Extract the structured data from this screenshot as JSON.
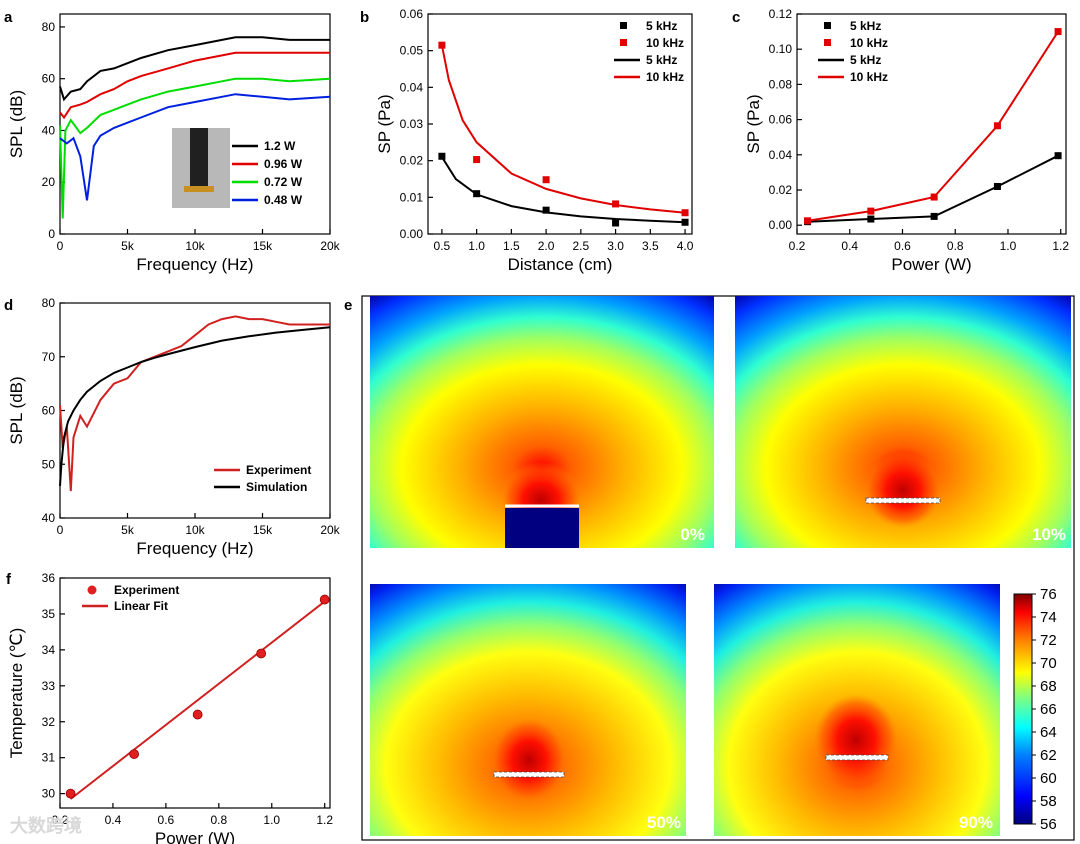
{
  "watermark": "大数跨境",
  "chart_data": [
    {
      "panel": "a",
      "type": "line",
      "xlabel": "Frequency (Hz)",
      "ylabel": "SPL (dB)",
      "xlim": [
        0,
        20000
      ],
      "ylim": [
        0,
        85
      ],
      "xticks": [
        0,
        5000,
        10000,
        15000,
        20000
      ],
      "xticklabels": [
        "0",
        "5k",
        "10k",
        "15k",
        "20k"
      ],
      "yticks": [
        0,
        20,
        40,
        60,
        80
      ],
      "yticklabels": [
        "0",
        "20",
        "40",
        "60",
        "80"
      ],
      "inset": "photo of device",
      "series": [
        {
          "name": "1.2 W",
          "color": "#000000",
          "x": [
            0,
            300,
            800,
            1500,
            2000,
            3000,
            4000,
            5000,
            6000,
            8000,
            10000,
            12000,
            13000,
            15000,
            17000,
            20000
          ],
          "y": [
            57,
            52,
            55,
            56,
            59,
            63,
            64,
            66,
            68,
            71,
            73,
            75,
            76,
            76,
            75,
            75
          ]
        },
        {
          "name": "0.96 W",
          "color": "#e00000",
          "x": [
            0,
            300,
            800,
            1500,
            2000,
            3000,
            4000,
            5000,
            6000,
            8000,
            10000,
            12000,
            13000,
            15000,
            17000,
            20000
          ],
          "y": [
            47,
            45,
            49,
            50,
            51,
            54,
            56,
            59,
            61,
            64,
            67,
            69,
            70,
            70,
            70,
            70
          ]
        },
        {
          "name": "0.72 W",
          "color": "#00dd00",
          "x": [
            0,
            200,
            400,
            800,
            1500,
            2000,
            3000,
            4000,
            5000,
            6000,
            8000,
            10000,
            12000,
            13000,
            15000,
            17000,
            20000
          ],
          "y": [
            42,
            6,
            40,
            44,
            39,
            41,
            46,
            48,
            50,
            52,
            55,
            57,
            59,
            60,
            60,
            59,
            60
          ]
        },
        {
          "name": "0.48 W",
          "color": "#0020e0",
          "x": [
            0,
            500,
            1000,
            1500,
            2000,
            2500,
            3000,
            4000,
            5000,
            6000,
            8000,
            10000,
            12000,
            13000,
            15000,
            17000,
            20000
          ],
          "y": [
            37,
            35,
            37,
            30,
            13,
            34,
            38,
            41,
            43,
            45,
            49,
            51,
            53,
            54,
            53,
            52,
            53
          ]
        }
      ]
    },
    {
      "panel": "b",
      "type": "scatter",
      "xlabel": "Distance (cm)",
      "ylabel": "SP (Pa)",
      "xlim": [
        0.3,
        4.1
      ],
      "ylim": [
        0,
        0.06
      ],
      "xticks": [
        0.5,
        1.0,
        1.5,
        2.0,
        2.5,
        3.0,
        3.5,
        4.0
      ],
      "xticklabels": [
        "0.5",
        "1.0",
        "1.5",
        "2.0",
        "2.5",
        "3.0",
        "3.5",
        "4.0"
      ],
      "yticks": [
        0,
        0.01,
        0.02,
        0.03,
        0.04,
        0.05,
        0.06
      ],
      "yticklabels": [
        "0.00",
        "0.01",
        "0.02",
        "0.03",
        "0.04",
        "0.05",
        "0.06"
      ],
      "legend": "top-right",
      "series": [
        {
          "name": "5 kHz",
          "kind": "points",
          "color": "#000000",
          "x": [
            0.5,
            1.0,
            2.0,
            3.0,
            4.0
          ],
          "y": [
            0.0212,
            0.011,
            0.0065,
            0.003,
            0.0032
          ]
        },
        {
          "name": "10 kHz",
          "kind": "points",
          "color": "#e00000",
          "x": [
            0.5,
            1.0,
            2.0,
            3.0,
            4.0
          ],
          "y": [
            0.0515,
            0.0203,
            0.0148,
            0.0082,
            0.0058
          ]
        },
        {
          "name": "5 kHz",
          "kind": "fit",
          "color": "#000000",
          "x": [
            0.5,
            0.7,
            1.0,
            1.5,
            2.0,
            2.5,
            3.0,
            3.5,
            4.0
          ],
          "y": [
            0.021,
            0.015,
            0.0108,
            0.0076,
            0.0059,
            0.0048,
            0.0041,
            0.0036,
            0.0032
          ]
        },
        {
          "name": "10 kHz",
          "kind": "fit",
          "color": "#e00000",
          "x": [
            0.5,
            0.6,
            0.8,
            1.0,
            1.5,
            2.0,
            2.5,
            3.0,
            3.5,
            4.0
          ],
          "y": [
            0.0515,
            0.042,
            0.031,
            0.025,
            0.0165,
            0.0123,
            0.0097,
            0.0079,
            0.0067,
            0.0058
          ]
        }
      ]
    },
    {
      "panel": "c",
      "type": "line",
      "xlabel": "Power (W)",
      "ylabel": "SP (Pa)",
      "xlim": [
        0.2,
        1.22
      ],
      "ylim": [
        -0.005,
        0.12
      ],
      "xticks": [
        0.2,
        0.4,
        0.6,
        0.8,
        1.0,
        1.2
      ],
      "xticklabels": [
        "0.2",
        "0.4",
        "0.6",
        "0.8",
        "1.0",
        "1.2"
      ],
      "yticks": [
        0,
        0.02,
        0.04,
        0.06,
        0.08,
        0.1,
        0.12
      ],
      "yticklabels": [
        "0.00",
        "0.02",
        "0.04",
        "0.06",
        "0.08",
        "0.10",
        "0.12"
      ],
      "legend": "top-left",
      "series": [
        {
          "name": "5 kHz",
          "kind": "points",
          "color": "#000000",
          "x": [
            0.24,
            0.48,
            0.72,
            0.96,
            1.19
          ],
          "y": [
            0.002,
            0.0035,
            0.005,
            0.022,
            0.0395
          ]
        },
        {
          "name": "10 kHz",
          "kind": "points",
          "color": "#e00000",
          "x": [
            0.24,
            0.48,
            0.72,
            0.96,
            1.19
          ],
          "y": [
            0.0025,
            0.008,
            0.016,
            0.0565,
            0.11
          ]
        },
        {
          "name": "5 kHz",
          "kind": "line",
          "color": "#000000",
          "x": [
            0.24,
            0.48,
            0.72,
            0.96,
            1.19
          ],
          "y": [
            0.002,
            0.0035,
            0.005,
            0.022,
            0.0395
          ]
        },
        {
          "name": "10 kHz",
          "kind": "line",
          "color": "#e00000",
          "x": [
            0.24,
            0.48,
            0.72,
            0.96,
            1.19
          ],
          "y": [
            0.0025,
            0.008,
            0.016,
            0.0565,
            0.11
          ]
        }
      ]
    },
    {
      "panel": "d",
      "type": "line",
      "xlabel": "Frequency (Hz)",
      "ylabel": "SPL (dB)",
      "xlim": [
        0,
        20000
      ],
      "ylim": [
        40,
        80
      ],
      "xticks": [
        0,
        5000,
        10000,
        15000,
        20000
      ],
      "xticklabels": [
        "0",
        "5k",
        "10k",
        "15k",
        "20k"
      ],
      "yticks": [
        40,
        50,
        60,
        70,
        80
      ],
      "yticklabels": [
        "40",
        "50",
        "60",
        "70",
        "80"
      ],
      "legend": "bottom-center",
      "series": [
        {
          "name": "Experiment",
          "color": "#d02020",
          "x": [
            0,
            200,
            500,
            800,
            1000,
            1500,
            2000,
            3000,
            4000,
            5000,
            6000,
            7000,
            8000,
            9000,
            10000,
            11000,
            12000,
            13000,
            14000,
            15000,
            16000,
            17000,
            18000,
            19000,
            20000
          ],
          "y": [
            61,
            53,
            57,
            45,
            55,
            59,
            57,
            62,
            65,
            66,
            69,
            70,
            71,
            72,
            74,
            76,
            77,
            77.5,
            77,
            77,
            76.5,
            76,
            76,
            76,
            76
          ]
        },
        {
          "name": "Simulation",
          "color": "#000000",
          "x": [
            0,
            100,
            300,
            600,
            1000,
            1500,
            2000,
            3000,
            4000,
            5000,
            6000,
            7000,
            8000,
            10000,
            12000,
            14000,
            16000,
            18000,
            20000
          ],
          "y": [
            46,
            50,
            55,
            58,
            60,
            62,
            63.5,
            65.5,
            67,
            68,
            69,
            69.8,
            70.5,
            71.8,
            73,
            73.8,
            74.5,
            75,
            75.5
          ]
        }
      ]
    },
    {
      "panel": "e",
      "type": "heatmap",
      "panels": [
        "0%",
        "10%",
        "50%",
        "90%"
      ],
      "colorbar": {
        "min": 56,
        "max": 76,
        "ticks": [
          56,
          58,
          60,
          62,
          64,
          66,
          68,
          70,
          72,
          74,
          76
        ]
      },
      "colors": [
        "#00007f",
        "#0000ff",
        "#0080ff",
        "#00ffff",
        "#80ff80",
        "#ffff00",
        "#ff8000",
        "#ff0000",
        "#7f0000"
      ]
    },
    {
      "panel": "f",
      "type": "scatter",
      "xlabel": "Power (W)",
      "ylabel": "Temperature (℃)",
      "xlim": [
        0.2,
        1.22
      ],
      "ylim": [
        29.6,
        36
      ],
      "xticks": [
        0.2,
        0.4,
        0.6,
        0.8,
        1.0,
        1.2
      ],
      "xticklabels": [
        "0.2",
        "0.4",
        "0.6",
        "0.8",
        "1.0",
        "1.2"
      ],
      "yticks": [
        30,
        31,
        32,
        33,
        34,
        35,
        36
      ],
      "yticklabels": [
        "30",
        "31",
        "32",
        "33",
        "34",
        "35",
        "36"
      ],
      "legend": "top-left",
      "series": [
        {
          "name": "Experiment",
          "kind": "points",
          "color": "#e02020",
          "x": [
            0.24,
            0.48,
            0.72,
            0.96,
            1.2
          ],
          "y": [
            30.0,
            31.1,
            32.2,
            33.9,
            35.4
          ]
        },
        {
          "name": "Linear Fit",
          "kind": "line",
          "color": "#d02020",
          "x": [
            0.24,
            1.2
          ],
          "y": [
            29.85,
            35.35
          ]
        }
      ]
    }
  ]
}
